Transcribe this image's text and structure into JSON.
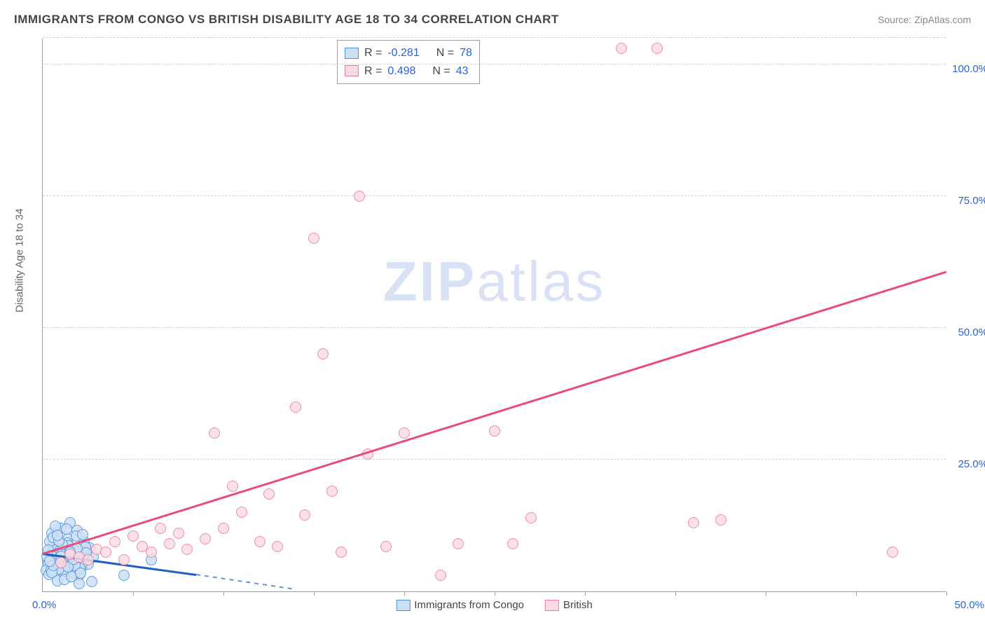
{
  "title": "IMMIGRANTS FROM CONGO VS BRITISH DISABILITY AGE 18 TO 34 CORRELATION CHART",
  "source": "Source: ZipAtlas.com",
  "y_axis_title": "Disability Age 18 to 34",
  "watermark_bold": "ZIP",
  "watermark_rest": "atlas",
  "chart": {
    "type": "scatter",
    "xlim": [
      0,
      50
    ],
    "ylim": [
      0,
      105
    ],
    "x_origin_label": "0.0%",
    "x_max_label": "50.0%",
    "x_ticks": [
      5,
      10,
      15,
      20,
      25,
      30,
      35,
      40,
      45,
      50
    ],
    "y_gridlines": [
      25,
      50,
      75,
      100,
      105
    ],
    "y_tick_labels": [
      "25.0%",
      "50.0%",
      "75.0%",
      "100.0%"
    ],
    "grid_color": "#d0d0d0",
    "axis_color": "#9aa0a6",
    "ylabel_color": "#2962d9",
    "xlabel_color": "#2962d9",
    "marker_radius": 8,
    "series": [
      {
        "name": "Immigrants from Congo",
        "fill": "#cde0f5",
        "stroke": "#4a8fd8",
        "r_label": "R =",
        "r_value": "-0.281",
        "n_label": "N =",
        "n_value": "78",
        "trend": {
          "x1": 0,
          "y1": 7.0,
          "x2": 8.5,
          "y2": 3.0,
          "color": "#1f5fbf",
          "dash": false
        },
        "trend_ext": {
          "x1": 8.5,
          "y1": 3.0,
          "x2": 14,
          "y2": 0.2,
          "color": "#6b8fd4",
          "dash": true
        },
        "points": [
          [
            0.3,
            5.4
          ],
          [
            0.4,
            6.0
          ],
          [
            0.5,
            7.2
          ],
          [
            0.6,
            5.0
          ],
          [
            0.7,
            8.5
          ],
          [
            0.8,
            4.5
          ],
          [
            0.9,
            6.2
          ],
          [
            1.0,
            9.0
          ],
          [
            1.1,
            3.8
          ],
          [
            1.2,
            7.5
          ],
          [
            1.3,
            5.6
          ],
          [
            1.4,
            10.0
          ],
          [
            1.5,
            4.2
          ],
          [
            1.6,
            6.8
          ],
          [
            1.7,
            8.0
          ],
          [
            1.8,
            5.5
          ],
          [
            1.9,
            11.5
          ],
          [
            2.0,
            3.0
          ],
          [
            2.1,
            7.0
          ],
          [
            2.2,
            4.8
          ],
          [
            2.3,
            9.5
          ],
          [
            2.4,
            6.0
          ],
          [
            2.5,
            5.2
          ],
          [
            2.6,
            8.2
          ],
          [
            2.7,
            1.8
          ],
          [
            2.8,
            6.5
          ],
          [
            0.2,
            4.0
          ],
          [
            0.35,
            3.2
          ],
          [
            0.55,
            8.8
          ],
          [
            0.75,
            5.8
          ],
          [
            0.95,
            7.8
          ],
          [
            1.15,
            4.6
          ],
          [
            1.35,
            9.2
          ],
          [
            1.55,
            6.3
          ],
          [
            1.75,
            3.5
          ],
          [
            1.95,
            7.6
          ],
          [
            2.15,
            5.0
          ],
          [
            2.35,
            8.4
          ],
          [
            0.25,
            6.7
          ],
          [
            0.45,
            4.1
          ],
          [
            0.65,
            9.8
          ],
          [
            0.85,
            5.3
          ],
          [
            1.05,
            7.1
          ],
          [
            1.25,
            3.9
          ],
          [
            1.45,
            8.6
          ],
          [
            1.65,
            5.9
          ],
          [
            1.85,
            10.5
          ],
          [
            2.05,
            4.4
          ],
          [
            6.0,
            6.0
          ],
          [
            4.5,
            3.0
          ],
          [
            1.0,
            12.0
          ],
          [
            0.5,
            11.0
          ],
          [
            1.5,
            13.0
          ],
          [
            0.8,
            2.0
          ],
          [
            2.0,
            1.5
          ],
          [
            1.2,
            2.3
          ],
          [
            0.4,
            9.5
          ],
          [
            0.6,
            10.2
          ],
          [
            1.3,
            11.8
          ],
          [
            0.9,
            4.3
          ],
          [
            1.6,
            2.8
          ],
          [
            2.2,
            10.8
          ],
          [
            0.7,
            12.3
          ],
          [
            1.8,
            4.9
          ],
          [
            0.3,
            7.9
          ],
          [
            1.1,
            8.9
          ],
          [
            0.5,
            3.6
          ],
          [
            1.4,
            4.7
          ],
          [
            2.4,
            7.3
          ],
          [
            0.9,
            9.6
          ],
          [
            1.7,
            6.1
          ],
          [
            0.6,
            4.9
          ],
          [
            1.9,
            8.1
          ],
          [
            0.4,
            5.7
          ],
          [
            2.1,
            3.4
          ],
          [
            1.0,
            6.6
          ],
          [
            0.8,
            10.7
          ],
          [
            1.5,
            7.4
          ]
        ]
      },
      {
        "name": "British",
        "fill": "#fadbe3",
        "stroke": "#e97ba0",
        "r_label": "R =",
        "r_value": "0.498",
        "n_label": "N =",
        "n_value": "43",
        "trend": {
          "x1": 0,
          "y1": 7.0,
          "x2": 50,
          "y2": 60.5,
          "color": "#e94b7a",
          "dash": false
        },
        "points": [
          [
            1.5,
            7.0
          ],
          [
            2.0,
            6.5
          ],
          [
            3.0,
            8.0
          ],
          [
            3.5,
            7.5
          ],
          [
            4.0,
            9.5
          ],
          [
            5.0,
            10.5
          ],
          [
            5.5,
            8.5
          ],
          [
            6.0,
            7.5
          ],
          [
            6.5,
            12.0
          ],
          [
            7.0,
            9.0
          ],
          [
            7.5,
            11.0
          ],
          [
            8.0,
            8.0
          ],
          [
            9.0,
            10.0
          ],
          [
            9.5,
            30.0
          ],
          [
            10.0,
            12.0
          ],
          [
            11.0,
            15.0
          ],
          [
            12.0,
            9.5
          ],
          [
            12.5,
            18.5
          ],
          [
            13.0,
            8.5
          ],
          [
            14.0,
            35.0
          ],
          [
            14.5,
            14.5
          ],
          [
            15.0,
            67.0
          ],
          [
            15.5,
            45.0
          ],
          [
            16.0,
            19.0
          ],
          [
            16.5,
            7.5
          ],
          [
            17.5,
            75.0
          ],
          [
            18.0,
            26.0
          ],
          [
            19.0,
            8.5
          ],
          [
            20.0,
            30.0
          ],
          [
            22.0,
            3.0
          ],
          [
            23.0,
            9.0
          ],
          [
            25.0,
            30.5
          ],
          [
            26.0,
            9.0
          ],
          [
            27.0,
            14.0
          ],
          [
            32.0,
            103.0
          ],
          [
            34.0,
            103.0
          ],
          [
            36.0,
            13.0
          ],
          [
            37.5,
            13.5
          ],
          [
            47.0,
            7.5
          ],
          [
            10.5,
            20.0
          ],
          [
            4.5,
            6.0
          ],
          [
            2.5,
            6.0
          ],
          [
            1.0,
            5.5
          ]
        ]
      }
    ]
  }
}
